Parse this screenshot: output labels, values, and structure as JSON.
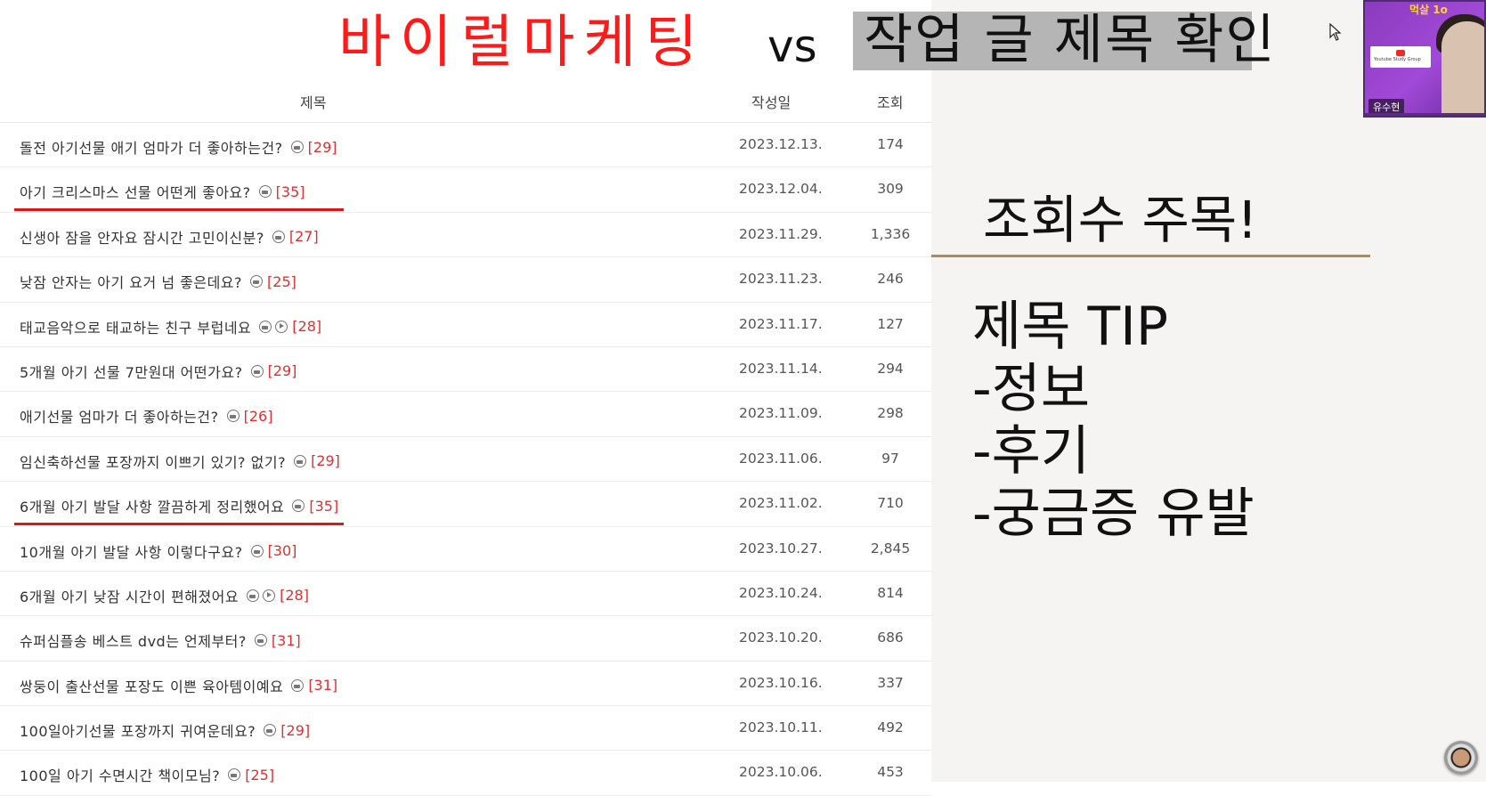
{
  "slide_title": {
    "main": "바이럴마케팅",
    "vs": "vs",
    "boxed": "작업 글 제목 확인"
  },
  "table": {
    "headers": {
      "title": "제목",
      "date": "작성일",
      "views": "조회"
    },
    "rows": [
      {
        "title": "돌전 아기선물 애기 엄마가 더 좋아하는건?",
        "icons": [
          "image-icon"
        ],
        "comments": "[29]",
        "date": "2023.12.13.",
        "views": "174"
      },
      {
        "title": "아기 크리스마스 선물 어떤게 좋아요?",
        "icons": [
          "image-icon"
        ],
        "comments": "[35]",
        "date": "2023.12.04.",
        "views": "309"
      },
      {
        "title": "신생아 잠을 안자요 잠시간 고민이신분?",
        "icons": [
          "image-icon"
        ],
        "comments": "[27]",
        "date": "2023.11.29.",
        "views": "1,336"
      },
      {
        "title": "낮잠 안자는 아기 요거 넘 좋은데요?",
        "icons": [
          "image-icon"
        ],
        "comments": "[25]",
        "date": "2023.11.23.",
        "views": "246"
      },
      {
        "title": "태교음악으로 태교하는 친구 부럽네요",
        "icons": [
          "image-icon",
          "video-icon"
        ],
        "comments": "[28]",
        "date": "2023.11.17.",
        "views": "127"
      },
      {
        "title": "5개월 아기 선물 7만원대 어떤가요?",
        "icons": [
          "image-icon"
        ],
        "comments": "[29]",
        "date": "2023.11.14.",
        "views": "294"
      },
      {
        "title": "애기선물 엄마가 더 좋아하는건?",
        "icons": [
          "image-icon"
        ],
        "comments": "[26]",
        "date": "2023.11.09.",
        "views": "298"
      },
      {
        "title": "임신축하선물 포장까지 이쁘기 있기? 없기?",
        "icons": [
          "image-icon"
        ],
        "comments": "[29]",
        "date": "2023.11.06.",
        "views": "97"
      },
      {
        "title": "6개월 아기 발달 사항 깔끔하게 정리했어요",
        "icons": [
          "image-icon"
        ],
        "comments": "[35]",
        "date": "2023.11.02.",
        "views": "710"
      },
      {
        "title": "10개월 아기 발달 사항 이렇다구요?",
        "icons": [
          "image-icon"
        ],
        "comments": "[30]",
        "date": "2023.10.27.",
        "views": "2,845"
      },
      {
        "title": "6개월 아기 낮잠 시간이 편해졌어요",
        "icons": [
          "image-icon",
          "video-icon"
        ],
        "comments": "[28]",
        "date": "2023.10.24.",
        "views": "814"
      },
      {
        "title": "슈퍼심플송 베스트 dvd는 언제부터?",
        "icons": [
          "image-icon"
        ],
        "comments": "[31]",
        "date": "2023.10.20.",
        "views": "686"
      },
      {
        "title": "쌍둥이 출산선물 포장도 이쁜 육아템이예요",
        "icons": [
          "image-icon"
        ],
        "comments": "[31]",
        "date": "2023.10.16.",
        "views": "337"
      },
      {
        "title": "100일아기선물 포장까지 귀여운데요?",
        "icons": [
          "image-icon"
        ],
        "comments": "[29]",
        "date": "2023.10.11.",
        "views": "492"
      },
      {
        "title": "100일 아기 수면시간 책이모님?",
        "icons": [
          "image-icon"
        ],
        "comments": "[25]",
        "date": "2023.10.06.",
        "views": "453"
      }
    ],
    "underlined_rows": [
      1,
      8
    ]
  },
  "side": {
    "headline": "조회수 주목!",
    "tips": [
      "제목 TIP",
      "-정보",
      "-후기",
      "-궁금증 유발"
    ]
  },
  "webcam": {
    "top_tag": "먹살 1o",
    "card_text": "Youtube Study Group",
    "name": "유수현"
  },
  "colors": {
    "title_red": "#ff1a1a",
    "comment_red": "#e03030",
    "underline_red": "#e01515",
    "title_box_gray": "#b5b5b5",
    "side_rule": "#a08e70",
    "webcam_purple": "#a149d8"
  }
}
